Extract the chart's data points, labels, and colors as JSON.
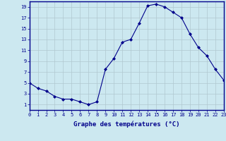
{
  "hours": [
    0,
    1,
    2,
    3,
    4,
    5,
    6,
    7,
    8,
    9,
    10,
    11,
    12,
    13,
    14,
    15,
    16,
    17,
    18,
    19,
    20,
    21,
    22,
    23
  ],
  "temperatures": [
    5.0,
    4.0,
    3.5,
    2.5,
    2.0,
    2.0,
    1.5,
    1.0,
    1.5,
    7.5,
    9.5,
    12.5,
    13.0,
    16.0,
    19.2,
    19.5,
    19.0,
    18.0,
    17.0,
    14.0,
    11.5,
    10.0,
    7.5,
    5.5
  ],
  "line_color": "#00008B",
  "marker": "D",
  "marker_size": 2.0,
  "xlabel": "Graphe des températures (°C)",
  "xlim": [
    0,
    23
  ],
  "ylim": [
    0,
    20
  ],
  "yticks": [
    1,
    3,
    5,
    7,
    9,
    11,
    13,
    15,
    17,
    19
  ],
  "xticks": [
    0,
    1,
    2,
    3,
    4,
    5,
    6,
    7,
    8,
    9,
    10,
    11,
    12,
    13,
    14,
    15,
    16,
    17,
    18,
    19,
    20,
    21,
    22,
    23
  ],
  "bg_color": "#cce8f0",
  "grid_color": "#b0c8d0",
  "axis_color": "#00008B",
  "label_color": "#00008B",
  "tick_fontsize": 5.0,
  "xlabel_fontsize": 6.5
}
